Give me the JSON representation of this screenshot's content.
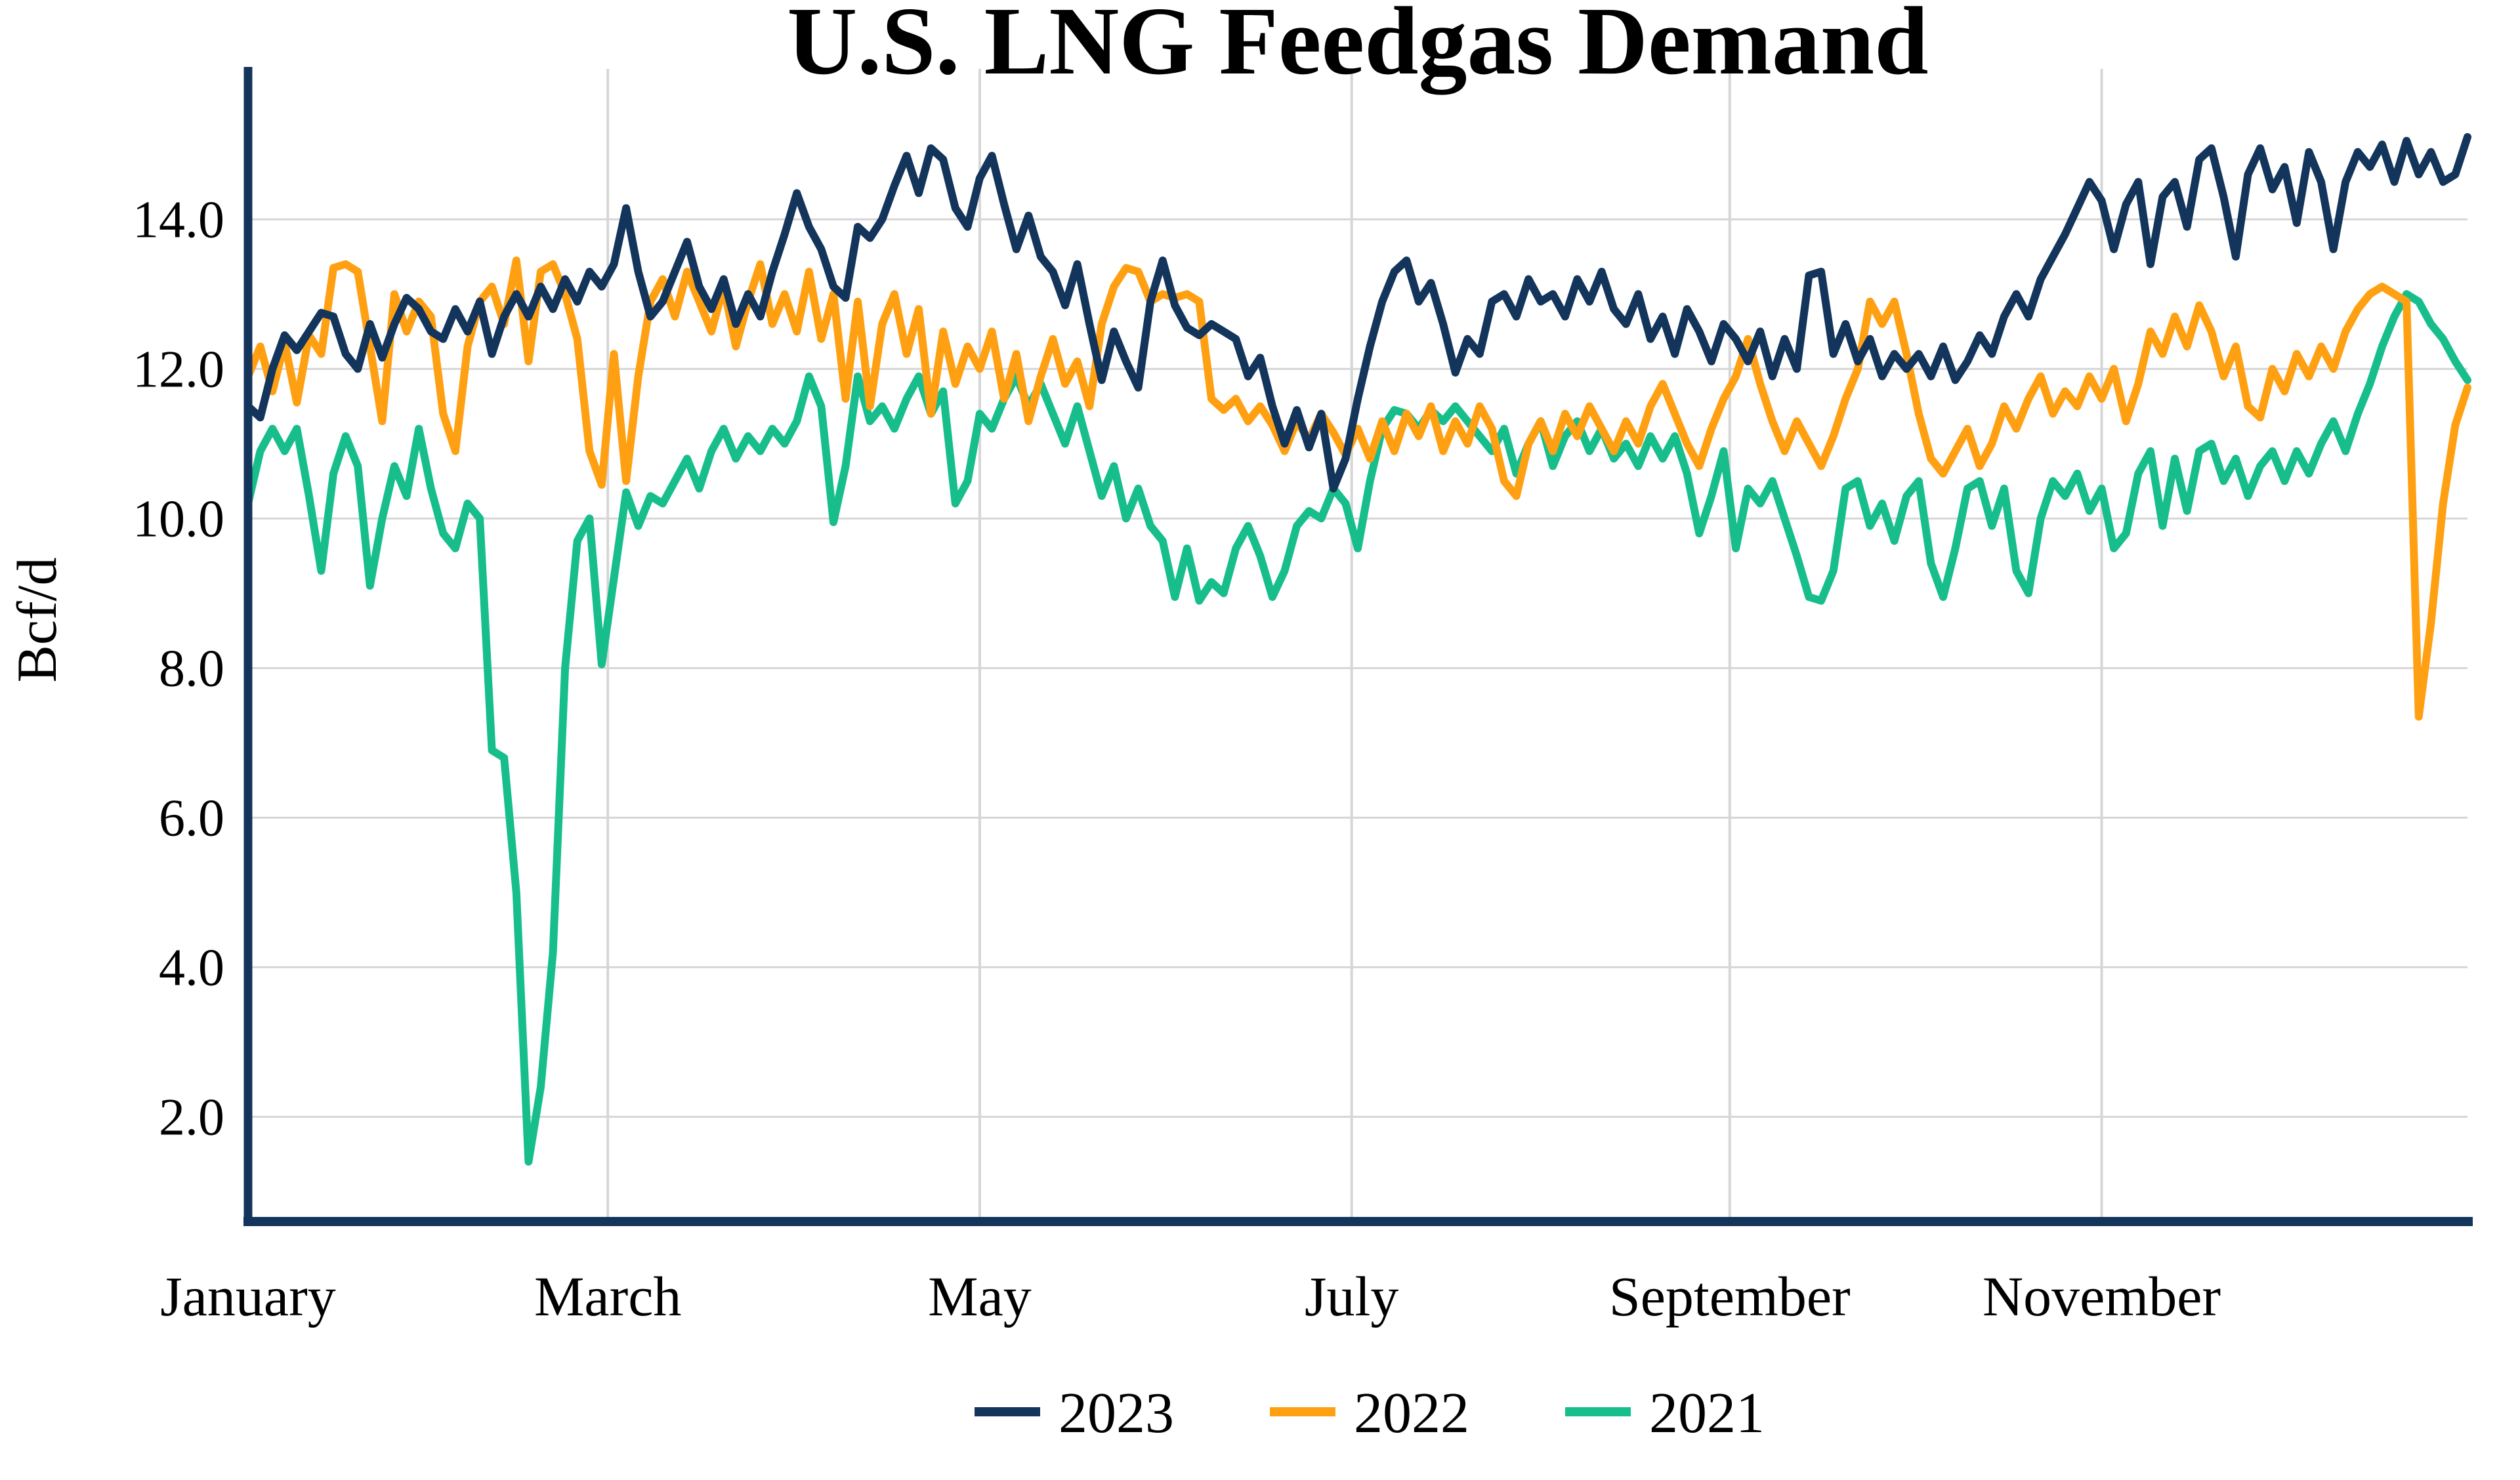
{
  "chart_data": {
    "type": "line",
    "title": "U.S. LNG Feedgas Demand",
    "ylabel": "Bcf/d",
    "xlabel": "",
    "x_unit": "day_of_year",
    "start_day": 0,
    "day_step": 2,
    "x_range_days": [
      0,
      364
    ],
    "ylim": [
      0.6,
      15.95
    ],
    "grid": "both",
    "legend_position": "bottom-center",
    "y_ticks": [
      {
        "value": 2,
        "label": "2.0"
      },
      {
        "value": 4,
        "label": "4.0"
      },
      {
        "value": 6,
        "label": "6.0"
      },
      {
        "value": 8,
        "label": "8.0"
      },
      {
        "value": 10,
        "label": "10.0"
      },
      {
        "value": 12,
        "label": "12.0"
      },
      {
        "value": 14,
        "label": "14.0"
      }
    ],
    "x_ticks": [
      {
        "label": "January",
        "day": 0
      },
      {
        "label": "March",
        "day": 59
      },
      {
        "label": "May",
        "day": 120
      },
      {
        "label": "July",
        "day": 181
      },
      {
        "label": "September",
        "day": 243
      },
      {
        "label": "November",
        "day": 304
      }
    ],
    "colors": {
      "2023": "#13355B",
      "2022": "#FFA013",
      "2021": "#17BE8C",
      "axis": "#13355B",
      "gridline": "#D6D6D6",
      "text": "#000000",
      "background": "#FFFFFF"
    },
    "series": [
      {
        "name": "2023",
        "values": [
          11.5,
          11.35,
          12.0,
          12.45,
          12.25,
          12.5,
          12.75,
          12.7,
          12.2,
          12.0,
          12.6,
          12.15,
          12.6,
          12.95,
          12.8,
          12.5,
          12.4,
          12.8,
          12.5,
          12.9,
          12.2,
          12.7,
          13.0,
          12.7,
          13.1,
          12.8,
          13.2,
          12.9,
          13.3,
          13.1,
          13.4,
          14.15,
          13.3,
          12.7,
          12.9,
          13.3,
          13.7,
          13.1,
          12.8,
          13.2,
          12.6,
          13.0,
          12.7,
          13.3,
          13.8,
          14.35,
          13.9,
          13.6,
          13.1,
          12.95,
          13.9,
          13.75,
          14.0,
          14.45,
          14.85,
          14.35,
          14.95,
          14.8,
          14.15,
          13.9,
          14.55,
          14.85,
          14.2,
          13.6,
          14.05,
          13.5,
          13.3,
          12.85,
          13.4,
          12.6,
          11.85,
          12.5,
          12.1,
          11.75,
          12.9,
          13.45,
          12.85,
          12.55,
          12.45,
          12.6,
          12.5,
          12.4,
          11.9,
          12.15,
          11.5,
          11.0,
          11.45,
          10.95,
          11.4,
          10.4,
          10.8,
          11.6,
          12.3,
          12.9,
          13.3,
          13.45,
          12.9,
          13.15,
          12.6,
          11.95,
          12.4,
          12.2,
          12.9,
          13.0,
          12.7,
          13.2,
          12.9,
          13.0,
          12.7,
          13.2,
          12.9,
          13.3,
          12.8,
          12.6,
          13.0,
          12.4,
          12.7,
          12.2,
          12.8,
          12.5,
          12.1,
          12.6,
          12.4,
          12.1,
          12.5,
          11.9,
          12.4,
          12.0,
          13.25,
          13.3,
          12.2,
          12.6,
          12.1,
          12.4,
          11.9,
          12.2,
          12.0,
          12.2,
          11.9,
          12.3,
          11.85,
          12.1,
          12.45,
          12.2,
          12.7,
          13.0,
          12.7,
          13.2,
          13.5,
          13.8,
          14.15,
          14.5,
          14.25,
          13.6,
          14.2,
          14.5,
          13.4,
          14.3,
          14.5,
          13.9,
          14.8,
          14.95,
          14.3,
          13.5,
          14.6,
          14.95,
          14.4,
          14.7,
          13.95,
          14.9,
          14.5,
          13.6,
          14.5,
          14.9,
          14.7,
          15.0,
          14.5,
          15.05,
          14.6,
          14.9,
          14.5,
          14.6,
          15.1
        ]
      },
      {
        "name": "2022",
        "values": [
          11.9,
          12.3,
          11.7,
          12.35,
          11.55,
          12.45,
          12.2,
          13.35,
          13.4,
          13.3,
          12.3,
          11.3,
          13.0,
          12.5,
          12.9,
          12.7,
          11.4,
          10.9,
          12.3,
          12.9,
          13.1,
          12.6,
          13.45,
          12.1,
          13.3,
          13.4,
          13.0,
          12.4,
          10.9,
          10.45,
          12.2,
          10.5,
          11.9,
          12.9,
          13.2,
          12.7,
          13.3,
          12.9,
          12.5,
          13.1,
          12.3,
          12.9,
          13.4,
          12.6,
          13.0,
          12.5,
          13.3,
          12.4,
          13.0,
          11.6,
          12.9,
          11.5,
          12.6,
          13.0,
          12.2,
          12.8,
          11.4,
          12.5,
          11.8,
          12.3,
          12.0,
          12.5,
          11.6,
          12.2,
          11.3,
          11.9,
          12.4,
          11.8,
          12.1,
          11.5,
          12.6,
          13.1,
          13.35,
          13.3,
          12.9,
          13.0,
          12.95,
          13.0,
          12.9,
          11.6,
          11.45,
          11.6,
          11.3,
          11.5,
          11.25,
          10.9,
          11.3,
          11.05,
          11.4,
          11.15,
          10.85,
          11.2,
          10.8,
          11.3,
          10.9,
          11.4,
          11.1,
          11.5,
          10.9,
          11.3,
          11.0,
          11.5,
          11.2,
          10.5,
          10.3,
          11.0,
          11.3,
          10.9,
          11.4,
          11.1,
          11.5,
          11.2,
          10.9,
          11.3,
          11.0,
          11.5,
          11.8,
          11.4,
          11.0,
          10.7,
          11.2,
          11.6,
          11.9,
          12.4,
          11.8,
          11.3,
          10.9,
          11.3,
          11.0,
          10.7,
          11.1,
          11.6,
          12.0,
          12.9,
          12.6,
          12.9,
          12.2,
          11.4,
          10.8,
          10.6,
          10.9,
          11.2,
          10.7,
          11.0,
          11.5,
          11.2,
          11.6,
          11.9,
          11.4,
          11.7,
          11.5,
          11.9,
          11.6,
          12.0,
          11.3,
          11.8,
          12.5,
          12.2,
          12.7,
          12.3,
          12.85,
          12.5,
          11.9,
          12.3,
          11.5,
          11.35,
          12.0,
          11.7,
          12.2,
          11.9,
          12.3,
          12.0,
          12.5,
          12.8,
          13.0,
          13.1,
          13.0,
          12.9,
          7.35,
          8.6,
          10.2,
          11.25,
          11.75
        ]
      },
      {
        "name": "2021",
        "values": [
          10.2,
          10.9,
          11.2,
          10.9,
          11.2,
          10.3,
          9.3,
          10.6,
          11.1,
          10.7,
          9.1,
          10.0,
          10.7,
          10.3,
          11.2,
          10.4,
          9.8,
          9.6,
          10.2,
          10.0,
          6.9,
          6.8,
          5.0,
          1.4,
          2.4,
          4.2,
          8.0,
          9.7,
          10.0,
          8.05,
          9.2,
          10.35,
          9.9,
          10.3,
          10.2,
          10.5,
          10.8,
          10.4,
          10.9,
          11.2,
          10.8,
          11.1,
          10.9,
          11.2,
          11.0,
          11.3,
          11.9,
          11.5,
          9.95,
          10.7,
          11.9,
          11.3,
          11.5,
          11.2,
          11.6,
          11.9,
          11.4,
          11.7,
          10.2,
          10.5,
          11.4,
          11.2,
          11.6,
          11.9,
          11.5,
          11.8,
          11.4,
          11.0,
          11.5,
          10.9,
          10.3,
          10.7,
          10.0,
          10.4,
          9.9,
          9.7,
          8.95,
          9.6,
          8.9,
          9.15,
          9.0,
          9.6,
          9.9,
          9.5,
          8.95,
          9.3,
          9.9,
          10.1,
          10.0,
          10.4,
          10.2,
          9.6,
          10.5,
          11.2,
          11.45,
          11.4,
          11.2,
          11.45,
          11.3,
          11.5,
          11.3,
          11.1,
          10.9,
          11.2,
          10.6,
          11.0,
          11.3,
          10.7,
          11.1,
          11.3,
          10.9,
          11.2,
          10.8,
          11.0,
          10.7,
          11.1,
          10.8,
          11.1,
          10.6,
          9.8,
          10.3,
          10.9,
          9.6,
          10.4,
          10.2,
          10.5,
          10.0,
          9.5,
          8.95,
          8.9,
          9.3,
          10.4,
          10.5,
          9.9,
          10.2,
          9.7,
          10.3,
          10.5,
          9.4,
          8.95,
          9.6,
          10.4,
          10.5,
          9.9,
          10.4,
          9.3,
          9.0,
          10.0,
          10.5,
          10.3,
          10.6,
          10.1,
          10.4,
          9.6,
          9.8,
          10.6,
          10.9,
          9.9,
          10.8,
          10.1,
          10.9,
          11.0,
          10.5,
          10.8,
          10.3,
          10.7,
          10.9,
          10.5,
          10.9,
          10.6,
          11.0,
          11.3,
          10.9,
          11.4,
          11.8,
          12.3,
          12.7,
          13.0,
          12.9,
          12.6,
          12.4,
          12.1,
          11.85
        ]
      }
    ]
  }
}
